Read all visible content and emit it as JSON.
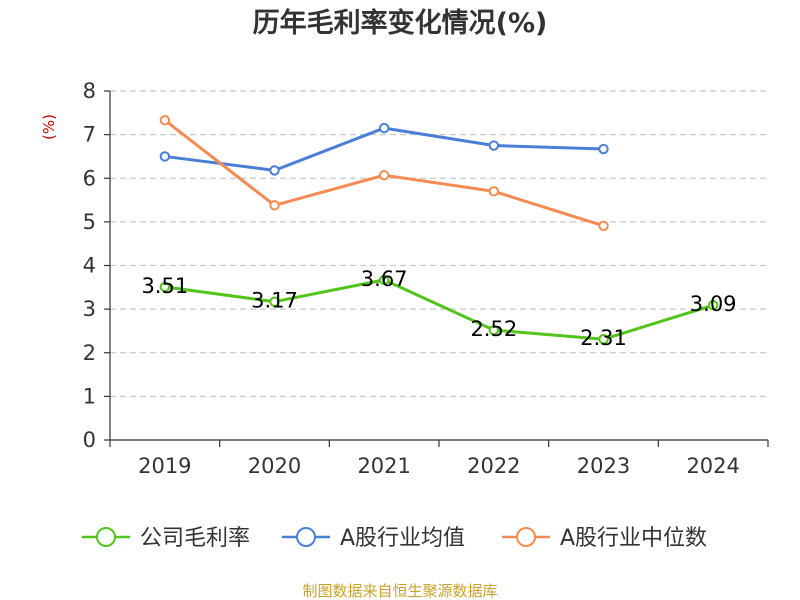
{
  "chart_data": {
    "type": "line",
    "title": "历年毛利率变化情况(%)",
    "ylabel": "(%)",
    "xlabel": "",
    "categories": [
      "2019",
      "2020",
      "2021",
      "2022",
      "2023",
      "2024"
    ],
    "ylim": [
      0,
      8
    ],
    "yticks": [
      0,
      1,
      2,
      3,
      4,
      5,
      6,
      7,
      8
    ],
    "grid": true,
    "legend_position": "bottom",
    "series": [
      {
        "name": "公司毛利率",
        "color": "#52c41a",
        "values": [
          3.51,
          3.17,
          3.67,
          2.52,
          2.31,
          3.09
        ],
        "labels": [
          "3.51",
          "3.17",
          "3.67",
          "2.52",
          "2.31",
          "3.09"
        ],
        "show_labels": true
      },
      {
        "name": "A股行业均值",
        "color": "#4a7fd6",
        "values": [
          6.5,
          6.18,
          7.15,
          6.75,
          6.67,
          null
        ],
        "show_labels": false
      },
      {
        "name": "A股行业中位数",
        "color": "#f58b52",
        "values": [
          7.33,
          5.38,
          6.07,
          5.7,
          4.91,
          null
        ],
        "show_labels": false
      }
    ],
    "source": "制图数据来自恒生聚源数据库",
    "source_color": "#c9a22e",
    "ylabel_color": "#cc0000"
  }
}
